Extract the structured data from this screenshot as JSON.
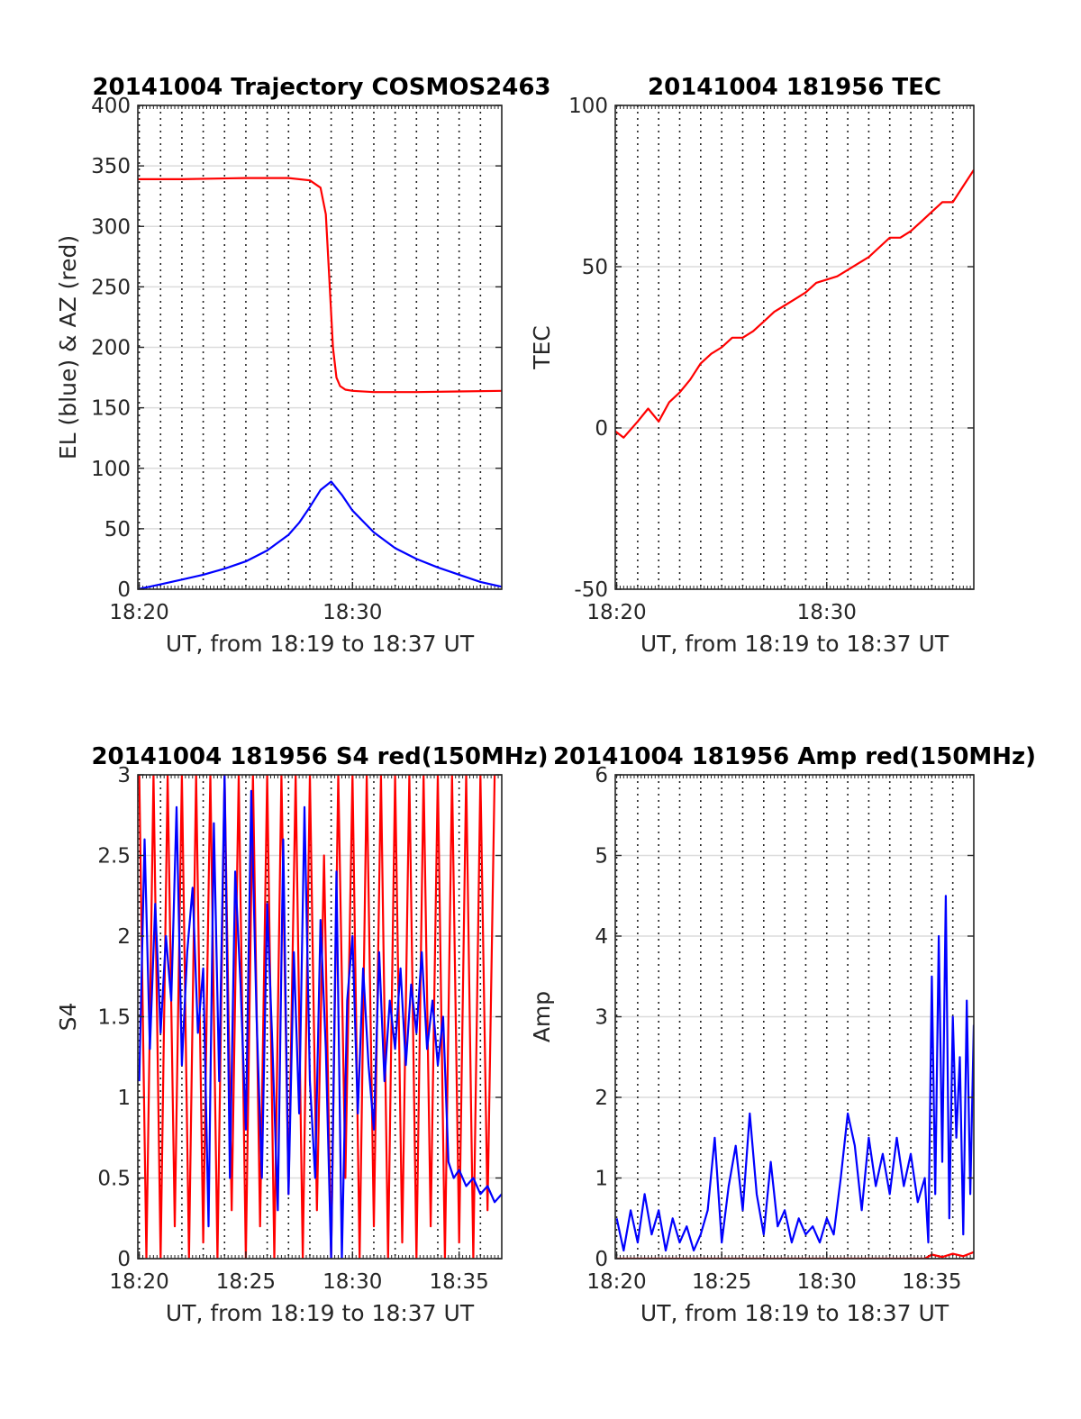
{
  "chart_data": [
    {
      "type": "line",
      "title": "20141004 Trajectory COSMOS2463",
      "xlabel": "UT, from 18:19 to 18:37 UT",
      "ylabel": "EL (blue) & AZ (red)",
      "xlim": [
        "18:19:56",
        "18:37:00"
      ],
      "ylim": [
        0,
        400
      ],
      "x_ticks": [
        "18:20",
        "18:30"
      ],
      "y_ticks": [
        "0",
        "50",
        "100",
        "150",
        "200",
        "250",
        "300",
        "350",
        "400"
      ],
      "grid": true,
      "series": [
        {
          "color": "#ff0000",
          "x": [
            "18:19:56",
            "18:22:00",
            "18:25:00",
            "18:27:00",
            "18:28:00",
            "18:28:30",
            "18:28:45",
            "18:28:55",
            "18:29:05",
            "18:29:15",
            "18:29:25",
            "18:29:40",
            "18:30:00",
            "18:31:00",
            "18:33:00",
            "18:37:00"
          ],
          "y": [
            339,
            339,
            340,
            340,
            338,
            332,
            310,
            255,
            200,
            175,
            168,
            165,
            164,
            163,
            163,
            164
          ]
        },
        {
          "color": "#0000ff",
          "x": [
            "18:19:56",
            "18:21:00",
            "18:22:00",
            "18:23:00",
            "18:24:00",
            "18:25:00",
            "18:26:00",
            "18:27:00",
            "18:27:30",
            "18:28:00",
            "18:28:30",
            "18:29:00",
            "18:29:30",
            "18:30:00",
            "18:31:00",
            "18:32:00",
            "18:33:00",
            "18:34:00",
            "18:35:00",
            "18:36:00",
            "18:37:00"
          ],
          "y": [
            0,
            4,
            8,
            12,
            17,
            23,
            32,
            45,
            55,
            68,
            82,
            89,
            78,
            65,
            47,
            34,
            25,
            18,
            12,
            6,
            2
          ]
        }
      ]
    },
    {
      "type": "line",
      "title": "20141004 181956 TEC",
      "xlabel": "UT, from 18:19 to 18:37 UT",
      "ylabel": "TEC",
      "xlim": [
        "18:19:56",
        "18:37:00"
      ],
      "ylim": [
        -50,
        100
      ],
      "x_ticks": [
        "18:20",
        "18:30"
      ],
      "y_ticks": [
        "-50",
        "0",
        "50",
        "100"
      ],
      "grid": true,
      "series": [
        {
          "color": "#ff0000",
          "x": [
            "18:19:56",
            "18:20:20",
            "18:21:00",
            "18:21:30",
            "18:22:00",
            "18:22:30",
            "18:23:00",
            "18:23:30",
            "18:24:00",
            "18:24:30",
            "18:25:00",
            "18:25:30",
            "18:26:00",
            "18:26:30",
            "18:27:00",
            "18:27:30",
            "18:28:00",
            "18:28:30",
            "18:29:00",
            "18:29:30",
            "18:30:00",
            "18:30:30",
            "18:31:00",
            "18:31:30",
            "18:32:00",
            "18:32:30",
            "18:33:00",
            "18:33:30",
            "18:34:00",
            "18:34:30",
            "18:35:00",
            "18:35:30",
            "18:36:00",
            "18:36:30",
            "18:37:00"
          ],
          "y": [
            -1,
            -3,
            2,
            6,
            2,
            8,
            11,
            15,
            20,
            23,
            25,
            28,
            28,
            30,
            33,
            36,
            38,
            40,
            42,
            45,
            46,
            47,
            49,
            51,
            53,
            56,
            59,
            59,
            61,
            64,
            67,
            70,
            70,
            75,
            80
          ]
        }
      ]
    },
    {
      "type": "line",
      "title": "20141004 181956 S4 red(150MHz)",
      "xlabel": "UT, from 18:19 to 18:37 UT",
      "ylabel": "S4",
      "xlim": [
        "18:19:56",
        "18:37:00"
      ],
      "ylim": [
        0,
        3
      ],
      "x_ticks": [
        "18:20",
        "18:25",
        "18:30",
        "18:35"
      ],
      "y_ticks": [
        "0",
        "0.5",
        "1",
        "1.5",
        "2",
        "2.5",
        "3"
      ],
      "grid": true,
      "series": [
        {
          "color": "#ff0000",
          "x": [
            "18:20:00",
            "18:20:20",
            "18:20:40",
            "18:21:00",
            "18:21:20",
            "18:21:40",
            "18:22:00",
            "18:22:20",
            "18:22:40",
            "18:23:00",
            "18:23:20",
            "18:23:40",
            "18:24:00",
            "18:24:20",
            "18:24:40",
            "18:25:00",
            "18:25:20",
            "18:25:40",
            "18:26:00",
            "18:26:20",
            "18:26:40",
            "18:27:00",
            "18:27:20",
            "18:27:40",
            "18:28:00",
            "18:28:20",
            "18:28:40",
            "18:29:00",
            "18:29:20",
            "18:29:40",
            "18:30:00",
            "18:30:20",
            "18:30:40",
            "18:31:00",
            "18:31:20",
            "18:31:40",
            "18:32:00",
            "18:32:20",
            "18:32:40",
            "18:33:00",
            "18:33:20",
            "18:33:40",
            "18:34:00",
            "18:34:20",
            "18:34:40",
            "18:35:00",
            "18:35:20",
            "18:35:40",
            "18:36:00",
            "18:36:20",
            "18:36:40"
          ],
          "y": [
            3.0,
            0,
            3.0,
            0,
            3.0,
            0.2,
            3.0,
            0,
            3.0,
            0.1,
            3.0,
            0,
            3.0,
            0.3,
            3.0,
            0,
            3.0,
            0.2,
            3.0,
            0,
            3.0,
            0.4,
            3.0,
            0,
            3.0,
            0.3,
            2.5,
            0,
            3.0,
            0.5,
            3.0,
            0,
            3.0,
            0.2,
            3.0,
            0,
            3.0,
            0.1,
            3.0,
            0,
            3.0,
            0.2,
            3.0,
            0,
            3.0,
            0.1,
            3.0,
            0,
            3.0,
            0.3,
            3.0
          ]
        },
        {
          "color": "#0000ff",
          "x": [
            "18:20:00",
            "18:20:15",
            "18:20:30",
            "18:20:45",
            "18:21:00",
            "18:21:15",
            "18:21:30",
            "18:21:45",
            "18:22:00",
            "18:22:15",
            "18:22:30",
            "18:22:45",
            "18:23:00",
            "18:23:15",
            "18:23:30",
            "18:23:45",
            "18:24:00",
            "18:24:15",
            "18:24:30",
            "18:24:45",
            "18:25:00",
            "18:25:15",
            "18:25:30",
            "18:25:45",
            "18:26:00",
            "18:26:15",
            "18:26:30",
            "18:26:45",
            "18:27:00",
            "18:27:15",
            "18:27:30",
            "18:27:45",
            "18:28:00",
            "18:28:15",
            "18:28:30",
            "18:28:45",
            "18:29:00",
            "18:29:15",
            "18:29:30",
            "18:29:45",
            "18:30:00",
            "18:30:15",
            "18:30:30",
            "18:30:45",
            "18:31:00",
            "18:31:15",
            "18:31:30",
            "18:31:45",
            "18:32:00",
            "18:32:15",
            "18:32:30",
            "18:32:45",
            "18:33:00",
            "18:33:15",
            "18:33:30",
            "18:33:45",
            "18:34:00",
            "18:34:15",
            "18:34:30",
            "18:34:45",
            "18:35:00",
            "18:35:20",
            "18:35:40",
            "18:36:00",
            "18:36:20",
            "18:36:40",
            "18:37:00"
          ],
          "y": [
            1.1,
            2.6,
            1.3,
            2.2,
            1.4,
            2.0,
            1.6,
            2.8,
            1.2,
            1.9,
            2.3,
            1.4,
            1.8,
            0.2,
            2.7,
            1.1,
            3.0,
            0.5,
            2.4,
            1.7,
            0.8,
            2.9,
            1.5,
            0.5,
            2.2,
            1.3,
            0.3,
            2.6,
            0.4,
            1.9,
            0.9,
            2.8,
            1.1,
            0.5,
            2.1,
            1.3,
            0,
            2.4,
            0,
            1.6,
            2.0,
            0.9,
            1.8,
            1.2,
            0.8,
            1.9,
            1.1,
            1.6,
            1.3,
            1.8,
            1.2,
            1.7,
            1.4,
            1.9,
            1.3,
            1.6,
            1.2,
            1.5,
            0.6,
            0.5,
            0.55,
            0.45,
            0.5,
            0.4,
            0.45,
            0.35,
            0.4
          ]
        }
      ]
    },
    {
      "type": "line",
      "title": "20141004 181956 Amp red(150MHz)",
      "xlabel": "UT, from 18:19 to 18:37 UT",
      "ylabel": "Amp",
      "xlim": [
        "18:19:56",
        "18:37:00"
      ],
      "ylim": [
        0,
        6
      ],
      "x_ticks": [
        "18:20",
        "18:25",
        "18:30",
        "18:35"
      ],
      "y_ticks": [
        "0",
        "1",
        "2",
        "3",
        "4",
        "5",
        "6"
      ],
      "grid": true,
      "series": [
        {
          "color": "#ff0000",
          "x": [
            "18:19:56",
            "18:34:40",
            "18:35:00",
            "18:35:30",
            "18:36:00",
            "18:36:30",
            "18:37:00"
          ],
          "y": [
            0,
            0,
            0.05,
            0.02,
            0.06,
            0.03,
            0.08
          ]
        },
        {
          "color": "#0000ff",
          "x": [
            "18:20:00",
            "18:20:20",
            "18:20:40",
            "18:21:00",
            "18:21:20",
            "18:21:40",
            "18:22:00",
            "18:22:20",
            "18:22:40",
            "18:23:00",
            "18:23:20",
            "18:23:40",
            "18:24:00",
            "18:24:20",
            "18:24:40",
            "18:25:00",
            "18:25:20",
            "18:25:40",
            "18:26:00",
            "18:26:20",
            "18:26:40",
            "18:27:00",
            "18:27:20",
            "18:27:40",
            "18:28:00",
            "18:28:20",
            "18:28:40",
            "18:29:00",
            "18:29:20",
            "18:29:40",
            "18:30:00",
            "18:30:20",
            "18:30:40",
            "18:31:00",
            "18:31:20",
            "18:31:40",
            "18:32:00",
            "18:32:20",
            "18:32:40",
            "18:33:00",
            "18:33:20",
            "18:33:40",
            "18:34:00",
            "18:34:20",
            "18:34:40",
            "18:34:50",
            "18:35:00",
            "18:35:10",
            "18:35:20",
            "18:35:30",
            "18:35:40",
            "18:35:50",
            "18:36:00",
            "18:36:10",
            "18:36:20",
            "18:36:30",
            "18:36:40",
            "18:36:50",
            "18:37:00"
          ],
          "y": [
            0.5,
            0.1,
            0.6,
            0.2,
            0.8,
            0.3,
            0.6,
            0.1,
            0.5,
            0.2,
            0.4,
            0.1,
            0.3,
            0.6,
            1.5,
            0.2,
            0.9,
            1.4,
            0.6,
            1.8,
            0.8,
            0.3,
            1.2,
            0.4,
            0.6,
            0.2,
            0.5,
            0.3,
            0.4,
            0.2,
            0.5,
            0.3,
            1.0,
            1.8,
            1.4,
            0.6,
            1.5,
            0.9,
            1.3,
            0.8,
            1.5,
            0.9,
            1.3,
            0.7,
            1.0,
            0.2,
            3.5,
            0.8,
            4.0,
            1.2,
            4.5,
            0.5,
            3.0,
            1.5,
            2.5,
            0.3,
            3.2,
            0.8,
            2.9
          ]
        }
      ]
    }
  ]
}
